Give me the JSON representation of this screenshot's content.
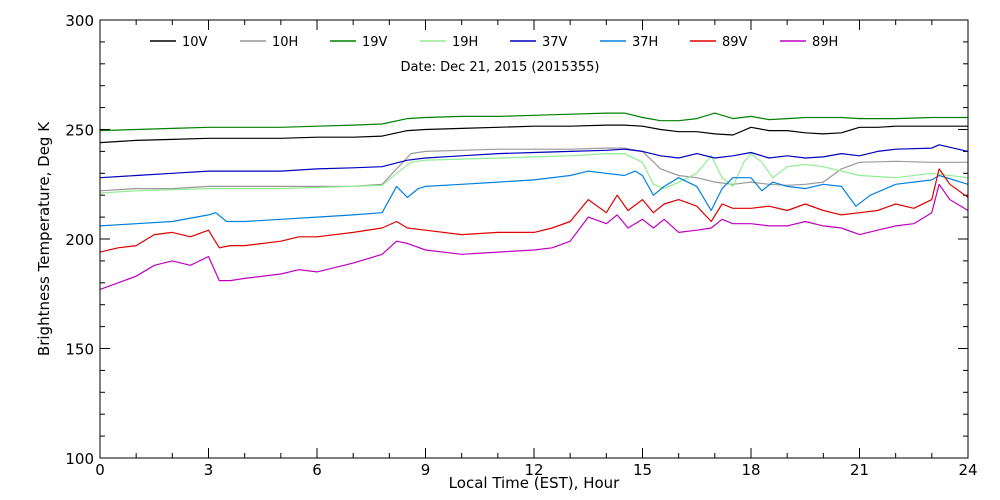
{
  "chart_data": {
    "type": "line",
    "title": "Date: Dec 21, 2015 (2015355)",
    "xlabel": "Local Time (EST), Hour",
    "ylabel": "Brightness Temperature, Deg K",
    "xlim": [
      0,
      24
    ],
    "ylim": [
      100,
      300
    ],
    "xticks": [
      0,
      3,
      6,
      9,
      12,
      15,
      18,
      21,
      24
    ],
    "yticks": [
      100,
      150,
      200,
      250,
      300
    ],
    "grid": false,
    "legend_position": "top",
    "series": [
      {
        "name": "10V",
        "color": "#000000",
        "x": [
          0,
          0.5,
          1,
          2,
          3,
          4,
          5,
          6,
          7,
          7.8,
          8.5,
          9,
          10,
          11,
          12,
          13,
          14,
          14.5,
          15,
          15.5,
          16,
          16.5,
          17,
          17.5,
          18,
          18.5,
          19,
          19.5,
          20,
          20.5,
          21,
          21.5,
          22,
          23,
          24
        ],
        "y": [
          244,
          244.5,
          245,
          245.5,
          246,
          246,
          246,
          246.5,
          246.5,
          247,
          249.5,
          250,
          250.5,
          251,
          251.5,
          251.5,
          252,
          252,
          251.5,
          250,
          249,
          249,
          248,
          247.5,
          251,
          249.5,
          249.5,
          248.5,
          248,
          248.5,
          251,
          251,
          251.5,
          251.5,
          251.5
        ]
      },
      {
        "name": "10H",
        "color": "#999999",
        "x": [
          0,
          1,
          2,
          3,
          4,
          5,
          6,
          7,
          7.8,
          8.2,
          8.6,
          9,
          10,
          11,
          12,
          13,
          14,
          14.5,
          15,
          15.5,
          16,
          16.5,
          17,
          17.5,
          18,
          18.5,
          19,
          19.5,
          20,
          20.5,
          21,
          22,
          23,
          24
        ],
        "y": [
          222,
          223,
          223,
          224,
          224,
          224,
          224,
          224,
          225,
          232,
          239,
          240,
          240.5,
          241,
          241,
          241,
          241.5,
          241.5,
          240,
          232,
          229,
          228,
          226,
          225,
          226,
          225,
          224.5,
          225,
          226,
          232,
          235,
          235.5,
          235,
          235
        ]
      },
      {
        "name": "19V",
        "color": "#008000",
        "x": [
          0,
          1,
          2,
          3,
          4,
          5,
          6,
          7,
          7.8,
          8.5,
          9,
          10,
          11,
          12,
          13,
          14,
          14.5,
          15,
          15.5,
          16,
          16.5,
          17,
          17.5,
          18,
          18.5,
          19,
          19.5,
          20,
          20.5,
          21,
          22,
          23,
          24
        ],
        "y": [
          249.5,
          250,
          250.5,
          251,
          251,
          251,
          251.5,
          252,
          252.5,
          255,
          255.5,
          256,
          256,
          256.5,
          257,
          257.5,
          257.5,
          255.5,
          254,
          254,
          255,
          257.5,
          255,
          256,
          254.5,
          255,
          255.5,
          255.5,
          255.5,
          255,
          255,
          255.5,
          255.5
        ]
      },
      {
        "name": "19H",
        "color": "#90EE90",
        "x": [
          0,
          1,
          2,
          3,
          4,
          5,
          6,
          7,
          7.8,
          8.2,
          8.6,
          9,
          10,
          11,
          12,
          13,
          14,
          14.5,
          15,
          15.3,
          15.6,
          16,
          16.5,
          16.9,
          17.2,
          17.5,
          17.8,
          18,
          18.3,
          18.6,
          19,
          19.5,
          20,
          20.5,
          21,
          22,
          23,
          24
        ],
        "y": [
          221,
          222,
          222.5,
          223,
          223,
          223,
          223.5,
          224,
          224.5,
          230,
          235,
          236,
          236.5,
          237,
          237.5,
          238,
          239,
          239,
          235,
          225,
          223,
          226,
          230,
          238,
          228,
          224,
          235,
          239,
          235,
          228,
          233,
          234,
          233,
          231,
          229,
          228,
          230,
          228
        ]
      },
      {
        "name": "37V",
        "color": "#0000C0",
        "x": [
          0,
          1,
          2,
          3,
          4,
          5,
          6,
          7,
          7.8,
          8.5,
          9,
          10,
          11,
          12,
          13,
          14,
          14.5,
          15,
          15.5,
          16,
          16.5,
          17,
          17.5,
          18,
          18.5,
          19,
          19.5,
          20,
          20.5,
          21,
          21.5,
          22,
          23,
          23.2,
          24
        ],
        "y": [
          228,
          229,
          230,
          231,
          231,
          231,
          232,
          232.5,
          233,
          236,
          237,
          238,
          239,
          239.5,
          240,
          240.5,
          241,
          240,
          238,
          237,
          239,
          237,
          238,
          239.5,
          237,
          238,
          237,
          237.5,
          239,
          238,
          240,
          241,
          241.5,
          243,
          240
        ]
      },
      {
        "name": "37H",
        "color": "#0080E0",
        "x": [
          0,
          1,
          2,
          3,
          3.2,
          3.5,
          4,
          5,
          6,
          7,
          7.8,
          8.2,
          8.5,
          8.8,
          9,
          10,
          11,
          12,
          13,
          13.5,
          14,
          14.5,
          14.8,
          15,
          15.3,
          15.6,
          16,
          16.5,
          16.9,
          17.2,
          17.5,
          18,
          18.3,
          18.6,
          19,
          19.5,
          20,
          20.5,
          20.9,
          21.3,
          22,
          23,
          23.2,
          24
        ],
        "y": [
          206,
          207,
          208,
          211,
          212,
          208,
          208,
          209,
          210,
          211,
          212,
          224,
          219,
          223,
          224,
          225,
          226,
          227,
          229,
          231,
          230,
          229,
          231,
          229,
          220,
          224,
          228,
          224,
          213,
          223,
          228,
          228,
          222,
          226,
          224,
          223,
          225,
          224,
          215,
          220,
          225,
          227,
          229,
          225
        ]
      },
      {
        "name": "89V",
        "color": "#E00000",
        "x": [
          0,
          0.5,
          1,
          1.5,
          2,
          2.5,
          3,
          3.3,
          3.6,
          4,
          5,
          5.5,
          6,
          7,
          7.8,
          8.2,
          8.5,
          9,
          10,
          11,
          12,
          12.5,
          13,
          13.5,
          14,
          14.3,
          14.6,
          15,
          15.3,
          15.6,
          16,
          16.5,
          16.9,
          17.2,
          17.5,
          18,
          18.5,
          19,
          19.5,
          20,
          20.5,
          21,
          21.5,
          22,
          22.5,
          23,
          23.2,
          23.5,
          24
        ],
        "y": [
          194,
          196,
          197,
          202,
          203,
          201,
          204,
          196,
          197,
          197,
          199,
          201,
          201,
          203,
          205,
          208,
          205,
          204,
          202,
          203,
          203,
          205,
          208,
          218,
          212,
          220,
          213,
          218,
          212,
          216,
          218,
          215,
          208,
          216,
          214,
          214,
          215,
          213,
          216,
          213,
          211,
          212,
          213,
          216,
          214,
          218,
          232,
          225,
          219
        ]
      },
      {
        "name": "89H",
        "color": "#C000C0",
        "x": [
          0,
          0.5,
          1,
          1.5,
          2,
          2.5,
          3,
          3.3,
          3.6,
          4,
          5,
          5.5,
          6,
          7,
          7.8,
          8.2,
          8.5,
          9,
          10,
          11,
          12,
          12.5,
          13,
          13.5,
          14,
          14.3,
          14.6,
          15,
          15.3,
          15.6,
          16,
          16.5,
          16.9,
          17.2,
          17.5,
          18,
          18.5,
          19,
          19.5,
          20,
          20.5,
          21,
          21.5,
          22,
          22.5,
          23,
          23.2,
          23.5,
          24
        ],
        "y": [
          177,
          180,
          183,
          188,
          190,
          188,
          192,
          181,
          181,
          182,
          184,
          186,
          185,
          189,
          193,
          199,
          198,
          195,
          193,
          194,
          195,
          196,
          199,
          210,
          207,
          211,
          205,
          209,
          205,
          209,
          203,
          204,
          205,
          209,
          207,
          207,
          206,
          206,
          208,
          206,
          205,
          202,
          204,
          206,
          207,
          212,
          225,
          218,
          213
        ]
      }
    ]
  }
}
